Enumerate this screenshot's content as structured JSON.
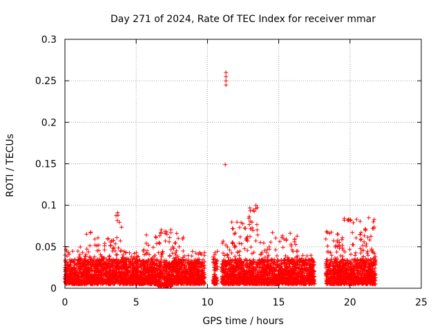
{
  "chart_data": {
    "type": "scatter",
    "title": "Day 271 of 2024, Rate Of TEC Index for receiver mmar",
    "xlabel": "GPS time / hours",
    "ylabel": "ROTI / TECUs",
    "xlim": [
      0,
      25
    ],
    "ylim": [
      0,
      0.3
    ],
    "xticks": [
      0,
      5,
      10,
      15,
      20,
      25
    ],
    "xtick_labels": [
      "0",
      "5",
      "10",
      "15",
      "20",
      "25"
    ],
    "yticks": [
      0,
      0.05,
      0.1,
      0.15,
      0.2,
      0.25,
      0.3
    ],
    "ytick_labels": [
      "0",
      "0.05",
      "0.1",
      "0.15",
      "0.2",
      "0.25",
      "0.3"
    ],
    "grid": true,
    "marker": "plus",
    "series_color": "#ff0000",
    "data_envelope": [
      {
        "x_start": 0.0,
        "x_end": 0.5,
        "y_low": 0.005,
        "y_high": 0.053
      },
      {
        "x_start": 0.5,
        "x_end": 1.5,
        "y_low": 0.005,
        "y_high": 0.055
      },
      {
        "x_start": 1.5,
        "x_end": 2.5,
        "y_low": 0.005,
        "y_high": 0.068
      },
      {
        "x_start": 2.5,
        "x_end": 3.5,
        "y_low": 0.005,
        "y_high": 0.06
      },
      {
        "x_start": 3.5,
        "x_end": 4.0,
        "y_low": 0.005,
        "y_high": 0.091
      },
      {
        "x_start": 4.0,
        "x_end": 5.5,
        "y_low": 0.005,
        "y_high": 0.045
      },
      {
        "x_start": 5.5,
        "x_end": 6.5,
        "y_low": 0.005,
        "y_high": 0.067
      },
      {
        "x_start": 6.5,
        "x_end": 7.5,
        "y_low": 0.002,
        "y_high": 0.071
      },
      {
        "x_start": 7.5,
        "x_end": 8.5,
        "y_low": 0.005,
        "y_high": 0.067
      },
      {
        "x_start": 8.5,
        "x_end": 9.8,
        "y_low": 0.005,
        "y_high": 0.045
      },
      {
        "x_start": 10.4,
        "x_end": 10.7,
        "y_low": 0.005,
        "y_high": 0.045
      },
      {
        "x_start": 11.0,
        "x_end": 11.6,
        "y_low": 0.005,
        "y_high": 0.06
      },
      {
        "x_start": 11.6,
        "x_end": 12.6,
        "y_low": 0.005,
        "y_high": 0.08
      },
      {
        "x_start": 12.6,
        "x_end": 13.6,
        "y_low": 0.005,
        "y_high": 0.1
      },
      {
        "x_start": 13.6,
        "x_end": 14.6,
        "y_low": 0.005,
        "y_high": 0.078
      },
      {
        "x_start": 14.6,
        "x_end": 16.4,
        "y_low": 0.005,
        "y_high": 0.07
      },
      {
        "x_start": 16.4,
        "x_end": 17.5,
        "y_low": 0.005,
        "y_high": 0.04
      },
      {
        "x_start": 18.3,
        "x_end": 19.5,
        "y_low": 0.005,
        "y_high": 0.071
      },
      {
        "x_start": 19.5,
        "x_end": 21.8,
        "y_low": 0.005,
        "y_high": 0.085
      }
    ],
    "outliers": [
      {
        "x": 11.3,
        "y": 0.26
      },
      {
        "x": 11.3,
        "y": 0.255
      },
      {
        "x": 11.3,
        "y": 0.25
      },
      {
        "x": 11.3,
        "y": 0.245
      },
      {
        "x": 11.25,
        "y": 0.149
      },
      {
        "x": 13.4,
        "y": 0.1
      },
      {
        "x": 13.4,
        "y": 0.096
      },
      {
        "x": 3.7,
        "y": 0.091
      },
      {
        "x": 19.6,
        "y": 0.084
      }
    ]
  }
}
